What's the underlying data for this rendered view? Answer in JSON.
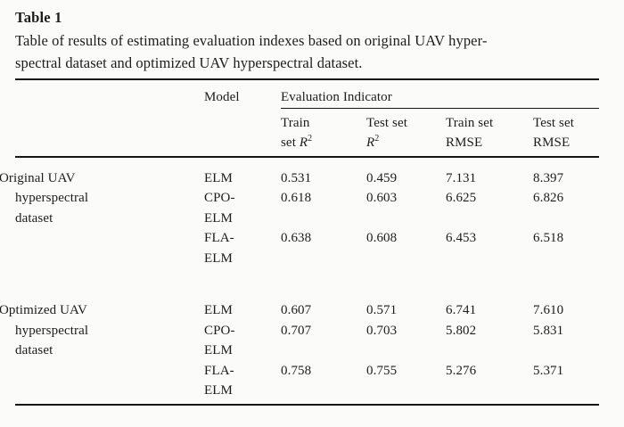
{
  "colors": {
    "background": "#fbfbfa",
    "text": "#1c1c1c",
    "rule": "#161616"
  },
  "heading": {
    "label": "Table 1"
  },
  "caption": "Table of results of estimating evaluation indexes based on original UAV hyper-\nspectral dataset and optimized UAV hyperspectral dataset.",
  "table": {
    "corner_label": "",
    "model_header": "Model",
    "group_header": "Evaluation Indicator",
    "sub_columns": [
      "Train\nset _R_^2",
      "Test set\n_R_^2",
      "Train set\nRMSE",
      "Test set\nRMSE"
    ],
    "sections": [
      {
        "label": "Original UAV\nhyperspectral\ndataset",
        "rows": [
          {
            "model": "ELM",
            "values": [
              "0.531",
              "0.459",
              "7.131",
              "8.397"
            ]
          },
          {
            "model": "CPO-\nELM",
            "values": [
              "0.618",
              "0.603",
              "6.625",
              "6.826"
            ]
          },
          {
            "model": "FLA-\nELM",
            "values": [
              "0.638",
              "0.608",
              "6.453",
              "6.518"
            ]
          }
        ]
      },
      {
        "label": "Optimized UAV\nhyperspectral\ndataset",
        "rows": [
          {
            "model": "ELM",
            "values": [
              "0.607",
              "0.571",
              "6.741",
              "7.610"
            ]
          },
          {
            "model": "CPO-\nELM",
            "values": [
              "0.707",
              "0.703",
              "5.802",
              "5.831"
            ]
          },
          {
            "model": "FLA-\nELM",
            "values": [
              "0.758",
              "0.755",
              "5.276",
              "5.371"
            ]
          }
        ]
      }
    ]
  }
}
